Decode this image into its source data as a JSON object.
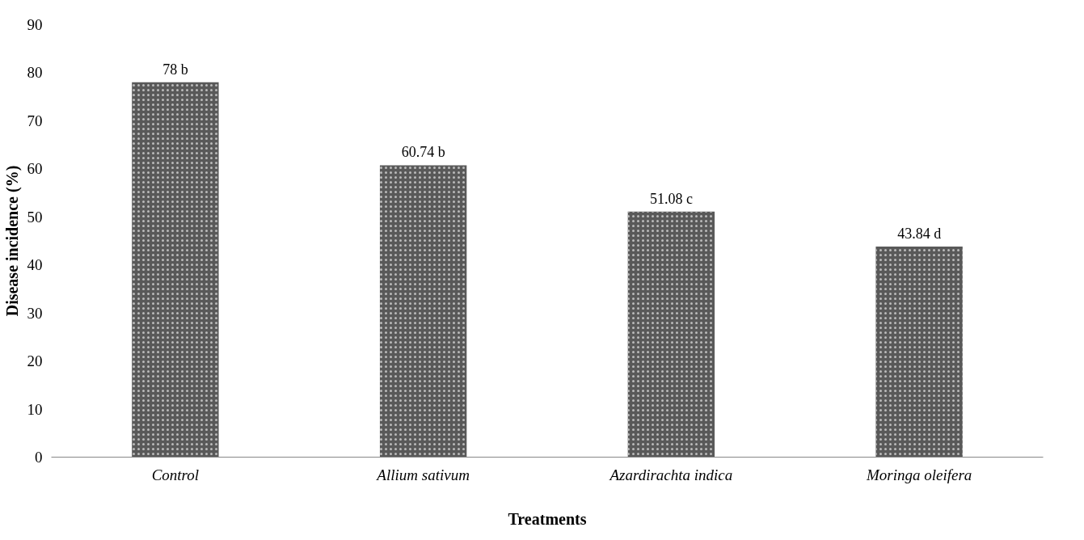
{
  "chart_data": {
    "type": "bar",
    "xlabel": "Treatments",
    "ylabel": "Disease incidence (%)",
    "categories": [
      "Control",
      "Allium sativum",
      "Azardirachta indica",
      "Moringa oleifera"
    ],
    "values": [
      78,
      60.74,
      51.08,
      43.84
    ],
    "value_labels": [
      "78 b",
      "60.74 b",
      "51.08 c",
      "43.84 d"
    ],
    "color": "#595959",
    "ylim": [
      0,
      90
    ],
    "yticks": [
      0,
      10,
      20,
      30,
      40,
      50,
      60,
      70,
      80,
      90
    ],
    "grid": false
  }
}
